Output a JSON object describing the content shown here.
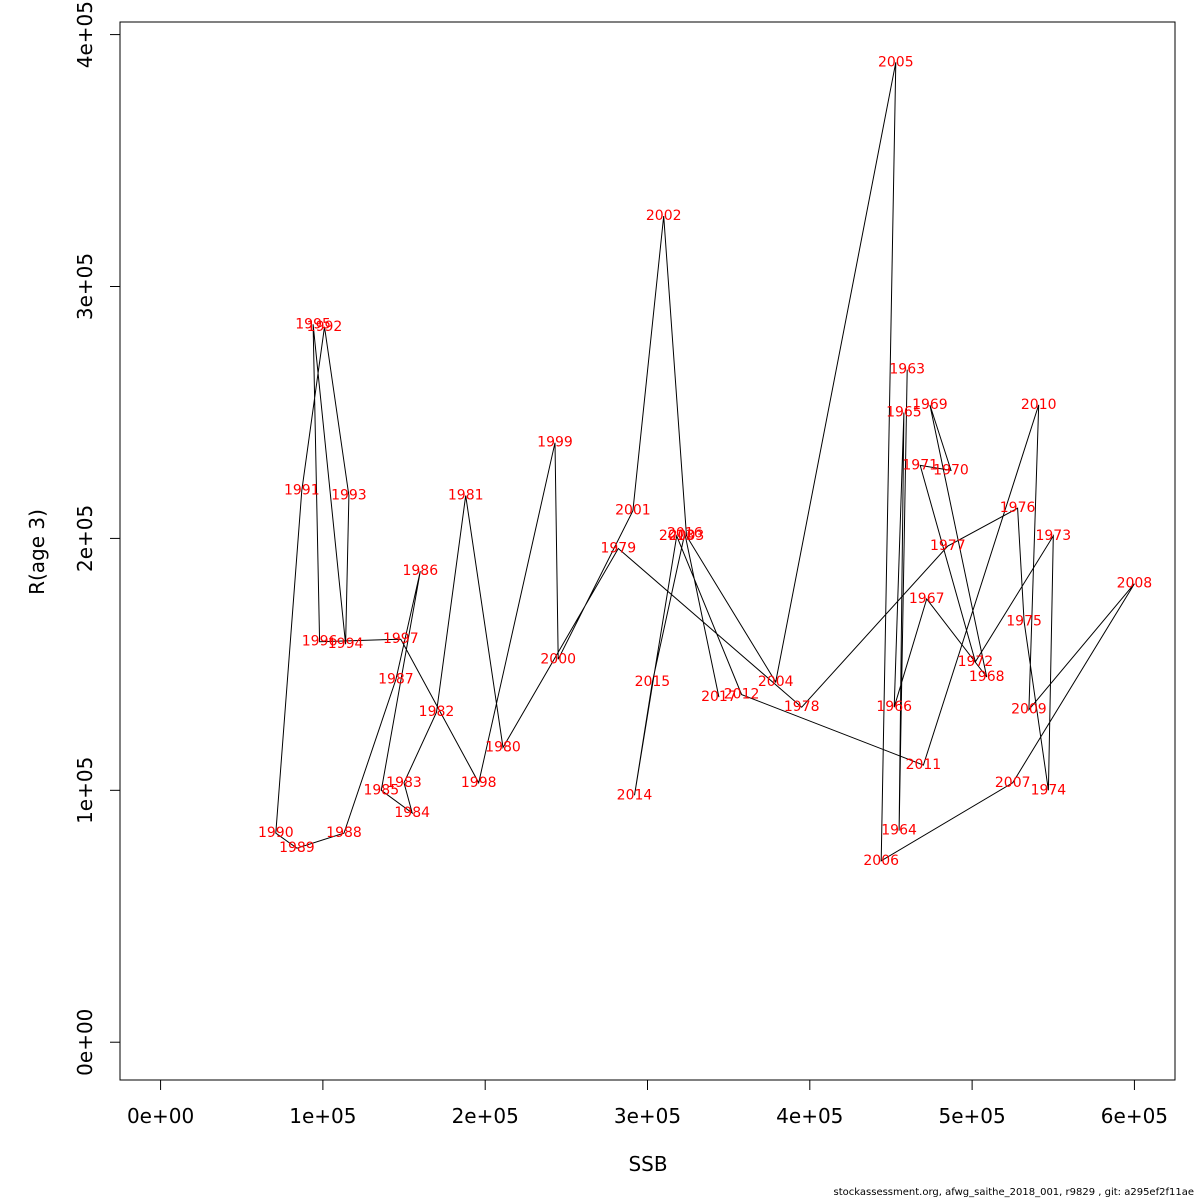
{
  "chart_data": {
    "type": "line",
    "title": "",
    "xlabel": "SSB",
    "ylabel": "R(age 3)",
    "xlim": [
      -25000,
      625000
    ],
    "ylim": [
      -15000,
      405000
    ],
    "xticks": [
      {
        "value": 0,
        "label": "0e+00"
      },
      {
        "value": 100000,
        "label": "1e+05"
      },
      {
        "value": 200000,
        "label": "2e+05"
      },
      {
        "value": 300000,
        "label": "3e+05"
      },
      {
        "value": 400000,
        "label": "4e+05"
      },
      {
        "value": 500000,
        "label": "5e+05"
      },
      {
        "value": 600000,
        "label": "6e+05"
      }
    ],
    "yticks": [
      {
        "value": 0,
        "label": "0e+00"
      },
      {
        "value": 100000,
        "label": "1e+05"
      },
      {
        "value": 200000,
        "label": "2e+05"
      },
      {
        "value": 300000,
        "label": "3e+05"
      },
      {
        "value": 400000,
        "label": "4e+05"
      }
    ],
    "grid": false,
    "line_color": "#000000",
    "label_color": "#ff0000",
    "points": [
      {
        "year": "1963",
        "x": 460000,
        "y": 267000
      },
      {
        "year": "1964",
        "x": 455000,
        "y": 84000
      },
      {
        "year": "1965",
        "x": 458000,
        "y": 250000
      },
      {
        "year": "1966",
        "x": 452000,
        "y": 133000
      },
      {
        "year": "1967",
        "x": 472000,
        "y": 176000
      },
      {
        "year": "1968",
        "x": 509000,
        "y": 145000
      },
      {
        "year": "1969",
        "x": 474000,
        "y": 253000
      },
      {
        "year": "1970",
        "x": 487000,
        "y": 227000
      },
      {
        "year": "1971",
        "x": 468000,
        "y": 229000
      },
      {
        "year": "1972",
        "x": 502000,
        "y": 151000
      },
      {
        "year": "1973",
        "x": 550000,
        "y": 201000
      },
      {
        "year": "1974",
        "x": 547000,
        "y": 100000
      },
      {
        "year": "1975",
        "x": 532000,
        "y": 167000
      },
      {
        "year": "1976",
        "x": 528000,
        "y": 212000
      },
      {
        "year": "1977",
        "x": 485000,
        "y": 197000
      },
      {
        "year": "1978",
        "x": 395000,
        "y": 133000
      },
      {
        "year": "1979",
        "x": 282000,
        "y": 196000
      },
      {
        "year": "1980",
        "x": 211000,
        "y": 117000
      },
      {
        "year": "1981",
        "x": 188000,
        "y": 217000
      },
      {
        "year": "1982",
        "x": 170000,
        "y": 131000
      },
      {
        "year": "1983",
        "x": 150000,
        "y": 103000
      },
      {
        "year": "1984",
        "x": 155000,
        "y": 91000
      },
      {
        "year": "1985",
        "x": 136000,
        "y": 100000
      },
      {
        "year": "1986",
        "x": 160000,
        "y": 187000
      },
      {
        "year": "1987",
        "x": 145000,
        "y": 144000
      },
      {
        "year": "1988",
        "x": 113000,
        "y": 83000
      },
      {
        "year": "1989",
        "x": 84000,
        "y": 77000
      },
      {
        "year": "1990",
        "x": 71000,
        "y": 83000
      },
      {
        "year": "1991",
        "x": 87000,
        "y": 219000
      },
      {
        "year": "1992",
        "x": 101000,
        "y": 284000
      },
      {
        "year": "1993",
        "x": 116000,
        "y": 217000
      },
      {
        "year": "1994",
        "x": 114000,
        "y": 158000
      },
      {
        "year": "1995",
        "x": 94000,
        "y": 285000
      },
      {
        "year": "1996",
        "x": 98000,
        "y": 159000
      },
      {
        "year": "1997",
        "x": 148000,
        "y": 160000
      },
      {
        "year": "1998",
        "x": 196000,
        "y": 103000
      },
      {
        "year": "1999",
        "x": 243000,
        "y": 238000
      },
      {
        "year": "2000",
        "x": 245000,
        "y": 152000
      },
      {
        "year": "2001",
        "x": 291000,
        "y": 211000
      },
      {
        "year": "2002",
        "x": 310000,
        "y": 328000
      },
      {
        "year": "2003",
        "x": 324000,
        "y": 201000
      },
      {
        "year": "2004",
        "x": 379000,
        "y": 143000
      },
      {
        "year": "2005",
        "x": 453000,
        "y": 389000
      },
      {
        "year": "2006",
        "x": 444000,
        "y": 72000
      },
      {
        "year": "2007",
        "x": 525000,
        "y": 103000
      },
      {
        "year": "2008",
        "x": 600000,
        "y": 182000
      },
      {
        "year": "2009",
        "x": 535000,
        "y": 132000
      },
      {
        "year": "2010",
        "x": 541000,
        "y": 253000
      },
      {
        "year": "2011",
        "x": 470000,
        "y": 110000
      },
      {
        "year": "2012",
        "x": 358000,
        "y": 138000
      },
      {
        "year": "2013",
        "x": 318000,
        "y": 201000
      },
      {
        "year": "2014",
        "x": 292000,
        "y": 98000
      },
      {
        "year": "2015",
        "x": 303000,
        "y": 143000
      },
      {
        "year": "2016",
        "x": 323000,
        "y": 202000
      },
      {
        "year": "2017",
        "x": 344000,
        "y": 137000
      }
    ]
  },
  "footer": "stockassessment.org, afwg_saithe_2018_001, r9829 , git: a295ef2f11ae"
}
